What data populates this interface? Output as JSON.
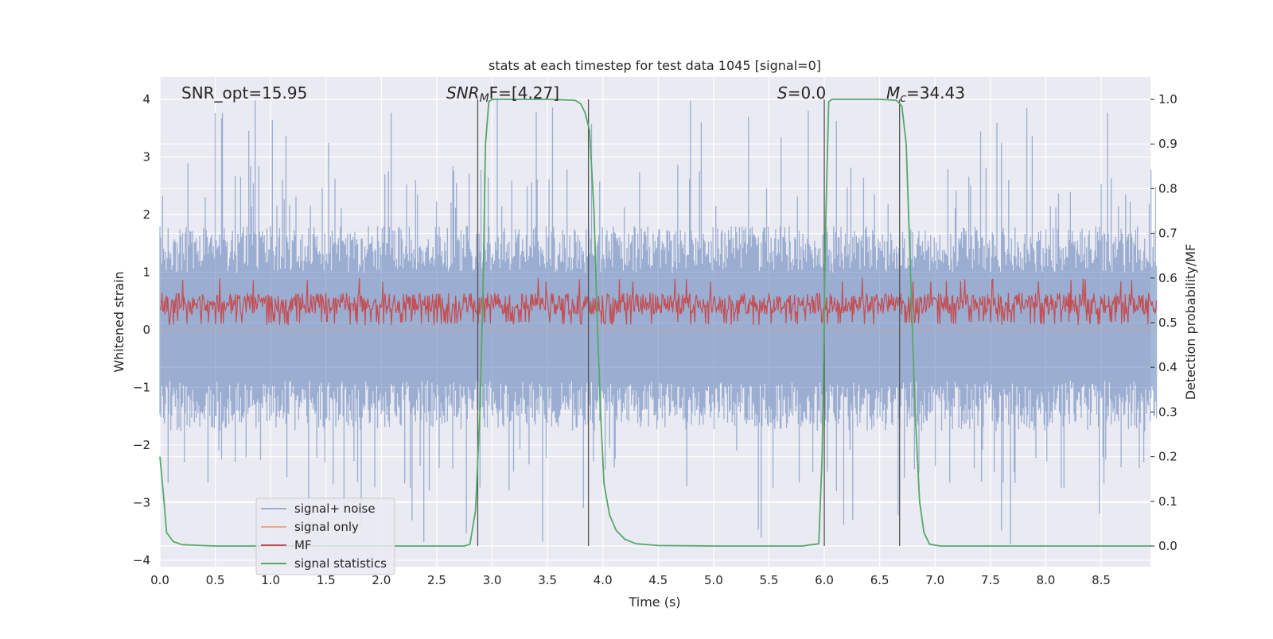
{
  "chart_data": {
    "type": "line",
    "title": "stats at each timestep for test data 1045 [signal=0]",
    "xlabel": "Time (s)",
    "ylabel": "Whitened strain",
    "y2label": "Detection probability/MF",
    "xlim": [
      0.0,
      9.0
    ],
    "ylim": [
      -4.25,
      4.4
    ],
    "y2lim": [
      -0.045,
      1.045
    ],
    "xticks": [
      "0.0",
      "0.5",
      "1.0",
      "1.5",
      "2.0",
      "2.5",
      "3.0",
      "3.5",
      "4.0",
      "4.5",
      "5.0",
      "5.5",
      "6.0",
      "6.5",
      "7.0",
      "7.5",
      "8.0",
      "8.5"
    ],
    "yticks": [
      "−4",
      "−3",
      "−2",
      "−1",
      "0",
      "1",
      "2",
      "3",
      "4"
    ],
    "y2ticks": [
      "0.0",
      "0.1",
      "0.2",
      "0.3",
      "0.4",
      "0.5",
      "0.6",
      "0.7",
      "0.8",
      "0.9",
      "1.0"
    ],
    "grid": true,
    "legend_position": "lower-left",
    "annotations": {
      "snr_opt": "SNR_opt=15.95",
      "snr_mf_math": "SNR",
      "snr_mf_sub": "M",
      "snr_mf_rest": "F=[4.27]",
      "s_math": "S",
      "s_rest": "=0.0",
      "mc_math": "M",
      "mc_sub": "c",
      "mc_rest": "=34.43"
    },
    "vertical_lines_x": [
      2.87,
      3.87,
      6.0,
      6.68
    ],
    "series": [
      {
        "name": "signal+ noise",
        "color": "#4c72b0",
        "axis": "left",
        "description": "noise band, roughly symmetric between about -2.5 and 2.5 with peaks to about +/-4",
        "envelope": {
          "typical_min": -1.6,
          "typical_max": 1.8,
          "peak_max": 4.0,
          "peak_min": -3.8
        }
      },
      {
        "name": "signal only",
        "color": "#dd8452",
        "axis": "left",
        "values_x": [
          0,
          9
        ],
        "values_y": [
          0,
          0
        ]
      },
      {
        "name": "MF",
        "color": "#c44e52",
        "axis": "right",
        "band": {
          "min": 0.495,
          "max": 0.59,
          "peak_max": 0.6
        }
      },
      {
        "name": "signal statistics",
        "color": "#55a868",
        "axis": "right",
        "x": [
          0.0,
          0.03,
          0.06,
          0.12,
          0.2,
          0.3,
          0.5,
          1.0,
          1.5,
          2.0,
          2.5,
          2.75,
          2.8,
          2.85,
          2.89,
          2.92,
          2.94,
          2.97,
          3.0,
          3.5,
          3.75,
          3.8,
          3.84,
          3.88,
          3.92,
          3.95,
          3.98,
          4.01,
          4.06,
          4.12,
          4.2,
          4.3,
          4.5,
          5.0,
          5.5,
          5.8,
          5.95,
          5.98,
          6.01,
          6.04,
          6.07,
          6.1,
          6.5,
          6.65,
          6.7,
          6.74,
          6.78,
          6.82,
          6.86,
          6.9,
          6.95,
          7.05,
          7.5,
          8.0,
          8.5,
          8.95
        ],
        "y": [
          0.2,
          0.12,
          0.03,
          0.01,
          0.003,
          0.002,
          0.0,
          0.0,
          0.0,
          0.0,
          0.0,
          0.0,
          0.004,
          0.08,
          0.3,
          0.6,
          0.9,
          0.995,
          1.0,
          1.0,
          0.998,
          0.99,
          0.97,
          0.93,
          0.75,
          0.5,
          0.3,
          0.14,
          0.07,
          0.035,
          0.015,
          0.005,
          0.001,
          0.0,
          0.0,
          0.0,
          0.005,
          0.2,
          0.7,
          0.995,
          1.0,
          1.0,
          1.0,
          0.998,
          0.985,
          0.9,
          0.6,
          0.3,
          0.1,
          0.03,
          0.004,
          0.0,
          0.0,
          0.0,
          0.0,
          0.0
        ]
      }
    ]
  }
}
